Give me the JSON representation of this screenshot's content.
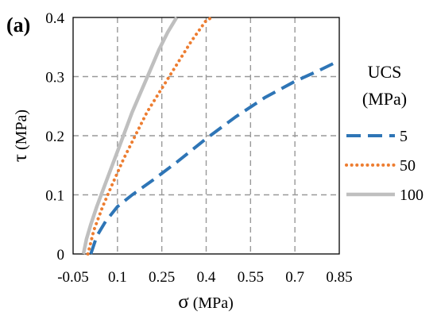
{
  "panel_label": "(a)",
  "chart_data": {
    "type": "line",
    "xlabel_symbol": "σ",
    "xlabel_unit": " (MPa)",
    "ylabel_symbol": "τ",
    "ylabel_unit": " (MPa)",
    "xlim": [
      -0.05,
      0.85
    ],
    "ylim": [
      0,
      0.4
    ],
    "x_ticks": [
      -0.05,
      0.1,
      0.25,
      0.4,
      0.55,
      0.7,
      0.85
    ],
    "x_tick_labels": [
      "-0.05",
      "0.1",
      "0.25",
      "0.4",
      "0.55",
      "0.7",
      "0.85"
    ],
    "y_ticks": [
      0,
      0.1,
      0.2,
      0.3,
      0.4
    ],
    "y_tick_labels": [
      "0",
      "0.1",
      "0.2",
      "0.3",
      "0.4"
    ],
    "grid": true,
    "legend": {
      "title_line1": "UCS",
      "title_line2": "(MPa)",
      "placement": "right"
    },
    "series": [
      {
        "name": "5",
        "color": "#2E75B6",
        "style": "dashed",
        "x": [
          0.01,
          0.03,
          0.06,
          0.1,
          0.15,
          0.22,
          0.3,
          0.4,
          0.5,
          0.6,
          0.7,
          0.78,
          0.85
        ],
        "y": [
          0.0,
          0.03,
          0.055,
          0.08,
          0.1,
          0.125,
          0.155,
          0.195,
          0.232,
          0.265,
          0.292,
          0.31,
          0.327
        ]
      },
      {
        "name": "50",
        "color": "#ED7D31",
        "style": "dotted",
        "x": [
          0.0,
          0.02,
          0.05,
          0.08,
          0.12,
          0.16,
          0.2,
          0.25,
          0.3,
          0.35,
          0.4,
          0.42
        ],
        "y": [
          0.0,
          0.04,
          0.08,
          0.115,
          0.16,
          0.2,
          0.24,
          0.28,
          0.32,
          0.36,
          0.395,
          0.4
        ]
      },
      {
        "name": "100",
        "color": "#BFBFBF",
        "style": "solid",
        "x": [
          -0.015,
          -0.005,
          0.01,
          0.03,
          0.06,
          0.09,
          0.12,
          0.15,
          0.18,
          0.21,
          0.24,
          0.27,
          0.3
        ],
        "y": [
          0.0,
          0.025,
          0.05,
          0.08,
          0.12,
          0.16,
          0.2,
          0.24,
          0.275,
          0.31,
          0.345,
          0.375,
          0.4
        ]
      }
    ]
  }
}
